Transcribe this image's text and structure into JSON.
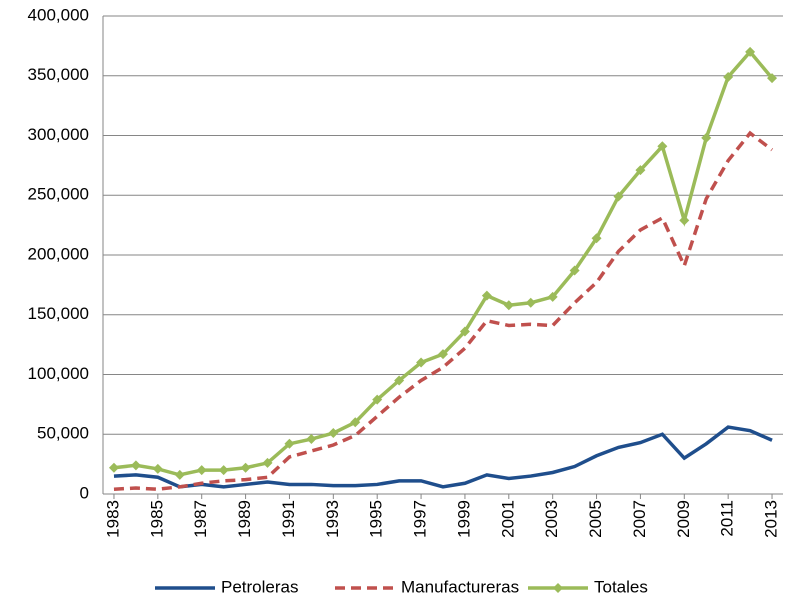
{
  "chart_data": {
    "type": "line",
    "x": [
      1983,
      1984,
      1985,
      1986,
      1987,
      1988,
      1989,
      1990,
      1991,
      1992,
      1993,
      1994,
      1995,
      1996,
      1997,
      1998,
      1999,
      2000,
      2001,
      2002,
      2003,
      2004,
      2005,
      2006,
      2007,
      2008,
      2009,
      2010,
      2011,
      2012,
      2013
    ],
    "xlim": [
      1983,
      2013
    ],
    "xticks": [
      1983,
      1985,
      1987,
      1989,
      1991,
      1993,
      1995,
      1997,
      1999,
      2001,
      2003,
      2005,
      2007,
      2009,
      2011,
      2013
    ],
    "ylim": [
      0,
      400000
    ],
    "yticks": [
      0,
      {
        "value": 50000,
        "label": "50,000"
      },
      {
        "value": 100000,
        "label": "100,000"
      },
      {
        "value": 150000,
        "label": "150,000"
      },
      {
        "value": 200000,
        "label": "200,000"
      },
      {
        "value": 250000,
        "label": "250,000"
      },
      {
        "value": 300000,
        "label": "300,000"
      },
      {
        "value": 350000,
        "label": "350,000"
      },
      {
        "value": 400000,
        "label": "400,000"
      }
    ],
    "grid": true,
    "legend": "bottom",
    "series": [
      {
        "name": "Petroleras",
        "color": "#1f4e8c",
        "style": "solid",
        "values": [
          15000,
          16000,
          14000,
          6000,
          8000,
          6000,
          8000,
          10000,
          8000,
          8000,
          7000,
          7000,
          8000,
          11000,
          11000,
          6000,
          9000,
          16000,
          13000,
          15000,
          18000,
          23000,
          32000,
          39000,
          43000,
          50000,
          30000,
          42000,
          56000,
          53000,
          45000
        ]
      },
      {
        "name": "Manufactureras",
        "color": "#c0504d",
        "style": "dashed",
        "values": [
          4000,
          5000,
          4000,
          6000,
          9000,
          11000,
          12000,
          14000,
          31000,
          36000,
          41000,
          49000,
          65000,
          81000,
          95000,
          106000,
          122000,
          145000,
          141000,
          142000,
          141000,
          160000,
          177000,
          203000,
          221000,
          231000,
          191000,
          247000,
          279000,
          302000,
          288000
        ]
      },
      {
        "name": "Totales",
        "color": "#9bbb59",
        "style": "solid",
        "marker": "diamond",
        "values": [
          22000,
          24000,
          21000,
          16000,
          20000,
          20000,
          22000,
          26000,
          42000,
          46000,
          51000,
          60000,
          79000,
          95000,
          110000,
          117000,
          136000,
          166000,
          158000,
          160000,
          165000,
          187000,
          214000,
          249000,
          271000,
          291000,
          229000,
          298000,
          349000,
          370000,
          348000
        ]
      }
    ]
  }
}
